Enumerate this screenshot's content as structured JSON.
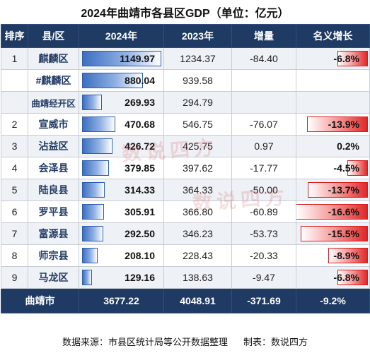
{
  "title": "2024年曲靖市各县区GDP（单位：亿元）",
  "headers": [
    "排序",
    "县/区",
    "2024年",
    "2023年",
    "增量",
    "名义增长"
  ],
  "rows": [
    {
      "rank": "1",
      "county": "麒麟区",
      "y2024": "1149.97",
      "y2023": "1234.37",
      "delta": "-84.40",
      "growth": "-6.8%",
      "v2024": 1149.97,
      "gv": -6.8
    },
    {
      "rank": "",
      "county": "#麒麟区",
      "y2024": "880.04",
      "y2023": "939.58",
      "delta": "",
      "growth": "",
      "v2024": 880.04,
      "gv": null
    },
    {
      "rank": "",
      "county": "曲靖经开区",
      "y2024": "269.93",
      "y2023": "294.79",
      "delta": "",
      "growth": "",
      "v2024": 269.93,
      "gv": null
    },
    {
      "rank": "2",
      "county": "宣威市",
      "y2024": "470.68",
      "y2023": "546.75",
      "delta": "-76.07",
      "growth": "-13.9%",
      "v2024": 470.68,
      "gv": -13.9
    },
    {
      "rank": "3",
      "county": "沾益区",
      "y2024": "426.72",
      "y2023": "425.75",
      "delta": "0.97",
      "growth": "0.2%",
      "v2024": 426.72,
      "gv": 0.2
    },
    {
      "rank": "4",
      "county": "会泽县",
      "y2024": "379.85",
      "y2023": "397.62",
      "delta": "-17.77",
      "growth": "-4.5%",
      "v2024": 379.85,
      "gv": -4.5
    },
    {
      "rank": "5",
      "county": "陆良县",
      "y2024": "314.33",
      "y2023": "364.33",
      "delta": "-50.00",
      "growth": "-13.7%",
      "v2024": 314.33,
      "gv": -13.7
    },
    {
      "rank": "6",
      "county": "罗平县",
      "y2024": "305.91",
      "y2023": "366.80",
      "delta": "-60.89",
      "growth": "-16.6%",
      "v2024": 305.91,
      "gv": -16.6
    },
    {
      "rank": "7",
      "county": "富源县",
      "y2024": "292.50",
      "y2023": "346.23",
      "delta": "-53.73",
      "growth": "-15.5%",
      "v2024": 292.5,
      "gv": -15.5
    },
    {
      "rank": "8",
      "county": "师宗县",
      "y2024": "208.10",
      "y2023": "228.43",
      "delta": "-20.33",
      "growth": "-8.9%",
      "v2024": 208.1,
      "gv": -8.9
    },
    {
      "rank": "9",
      "county": "马龙区",
      "y2024": "129.16",
      "y2023": "138.63",
      "delta": "-9.47",
      "growth": "-6.8%",
      "v2024": 129.16,
      "gv": -6.8
    }
  ],
  "total": {
    "label": "曲靖市",
    "y2024": "3677.22",
    "y2023": "4048.91",
    "delta": "-371.69",
    "growth": "-9.2%"
  },
  "footer": {
    "source": "数据来源：市县区统计局等公开数据整理",
    "maker": "制表：数说四方"
  },
  "watermark": "数说四方",
  "colors": {
    "header_bg": "#1f3b63",
    "bar_blue": "#3d6fc0",
    "bar_red": "#e22727"
  }
}
